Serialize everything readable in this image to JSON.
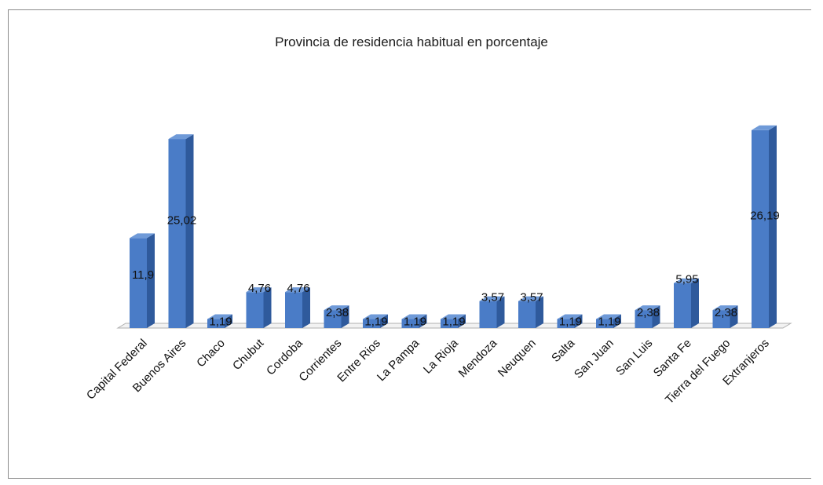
{
  "chart_data": {
    "type": "bar",
    "title": "Provincia de residencia habitual en porcentaje",
    "xlabel": "",
    "ylabel": "",
    "ylim": [
      0,
      27
    ],
    "grid": false,
    "legend": "none",
    "categories": [
      "Capital Federal",
      "Buenos Aires",
      "Chaco",
      "Chubut",
      "Cordoba",
      "Corrientes",
      "Entre Rios",
      "La Pampa",
      "La Rioja",
      "Mendoza",
      "Neuquen",
      "Salta",
      "San Juan",
      "San Luis",
      "Santa Fe",
      "Tierra del Fuego",
      "Extranjeros"
    ],
    "values": [
      11.9,
      25.02,
      1.19,
      4.76,
      4.76,
      2.38,
      1.19,
      1.19,
      1.19,
      3.57,
      3.57,
      1.19,
      1.19,
      2.38,
      5.95,
      2.38,
      26.19
    ],
    "value_labels": [
      "11,9",
      "25,02",
      "1,19",
      "4,76",
      "4,76",
      "2,38",
      "1,19",
      "1,19",
      "1,19",
      "3,57",
      "3,57",
      "1,19",
      "1,19",
      "2,38",
      "5,95",
      "2,38",
      "26,19"
    ],
    "colors": {
      "bar_front": "#4a7cc7",
      "bar_side": "#2f5a9c",
      "bar_top": "#6f9ad8",
      "floor": "#b0b0b0"
    }
  }
}
